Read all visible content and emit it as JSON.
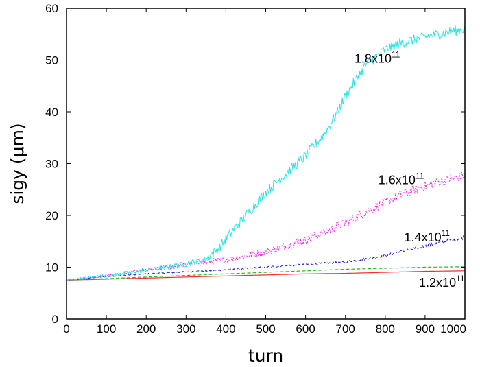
{
  "chart_data": {
    "type": "line",
    "xlabel": "turn",
    "ylabel": "sigy (μm)",
    "xlim": [
      0,
      1000
    ],
    "ylim": [
      0,
      60
    ],
    "xticks": [
      0,
      100,
      200,
      300,
      400,
      500,
      600,
      700,
      800,
      900,
      1000
    ],
    "yticks": [
      0,
      10,
      20,
      30,
      40,
      50,
      60
    ],
    "grid": false,
    "series": [
      {
        "name": "1.2x10^11",
        "label_base": "1.2x10",
        "label_exp": "11",
        "color": "#ff2a2a",
        "style": "solid",
        "noise": 0,
        "x": [
          0,
          100,
          200,
          300,
          400,
          500,
          600,
          700,
          800,
          900,
          1000
        ],
        "y": [
          7.5,
          7.7,
          7.9,
          8.1,
          8.3,
          8.5,
          8.7,
          8.8,
          9.0,
          9.2,
          9.3
        ]
      },
      {
        "name": "",
        "color": "#22bb22",
        "style": "dashed",
        "noise": 0,
        "x": [
          0,
          100,
          200,
          300,
          400,
          500,
          600,
          700,
          800,
          900,
          1000
        ],
        "y": [
          7.5,
          7.8,
          8.1,
          8.4,
          8.7,
          9.0,
          9.3,
          9.6,
          9.8,
          10.0,
          10.1
        ]
      },
      {
        "name": "1.4x10^11",
        "label_base": "1.4x10",
        "label_exp": "11",
        "color": "#1a1acc",
        "style": "dashed",
        "noise": 0.35,
        "x": [
          0,
          100,
          200,
          300,
          400,
          500,
          600,
          700,
          750,
          800,
          850,
          900,
          950,
          1000
        ],
        "y": [
          7.5,
          8.2,
          8.7,
          9.1,
          9.5,
          10.0,
          10.5,
          11.0,
          11.6,
          12.3,
          13.2,
          14.0,
          15.0,
          15.8
        ]
      },
      {
        "name": "1.6x10^11",
        "label_base": "1.6x10",
        "label_exp": "11",
        "color": "#ee22ee",
        "style": "dotted",
        "noise": 0.9,
        "x": [
          0,
          100,
          200,
          300,
          400,
          450,
          500,
          550,
          600,
          650,
          700,
          750,
          800,
          850,
          900,
          950,
          1000
        ],
        "y": [
          7.5,
          8.4,
          9.4,
          10.4,
          11.5,
          12.2,
          13.0,
          14.0,
          15.3,
          16.8,
          18.6,
          20.6,
          22.6,
          24.3,
          25.7,
          26.8,
          27.7
        ]
      },
      {
        "name": "1.8x10^11",
        "label_base": "1.8x10",
        "label_exp": "11",
        "color": "#22e4e4",
        "style": "solid",
        "noise": 1.0,
        "x": [
          0,
          100,
          200,
          300,
          350,
          380,
          400,
          450,
          500,
          550,
          600,
          650,
          680,
          700,
          720,
          750,
          800,
          850,
          900,
          950,
          1000
        ],
        "y": [
          7.5,
          8.4,
          9.4,
          10.6,
          11.6,
          13.5,
          15.5,
          20.0,
          24.5,
          28.0,
          31.5,
          36.0,
          40.0,
          43.0,
          45.5,
          49.0,
          52.0,
          53.5,
          54.5,
          55.3,
          56.0
        ]
      }
    ],
    "annotations": [
      {
        "series": "1.8x10^11",
        "base": "1.8x10",
        "exp": "11",
        "x": 780,
        "y": 49.5
      },
      {
        "series": "1.6x10^11",
        "base": "1.6x10",
        "exp": "11",
        "x": 840,
        "y": 26.0
      },
      {
        "series": "1.4x10^11",
        "base": "1.4x10",
        "exp": "11",
        "x": 905,
        "y": 15.0
      },
      {
        "series": "1.2x10^11",
        "base": "1.2x10",
        "exp": "11",
        "x": 942,
        "y": 6.2
      }
    ]
  }
}
